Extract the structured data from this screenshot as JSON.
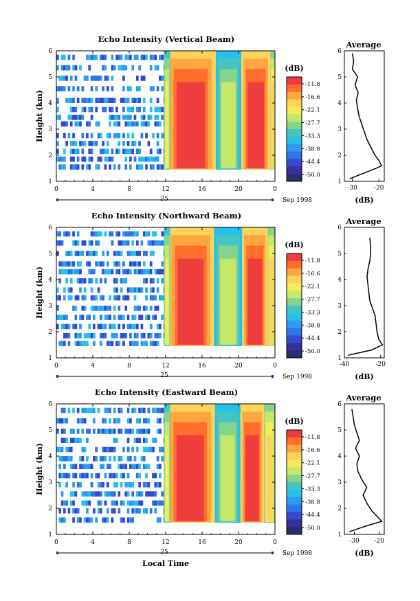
{
  "chart_data": [
    {
      "type": "heatmap",
      "title": "Echo Intensity (Vertical Beam)",
      "ylabel": "Height (km)",
      "yticks": [
        "1",
        "2",
        "3",
        "4",
        "5",
        "6"
      ],
      "ylim": [
        1,
        6
      ],
      "xticks": [
        "0",
        "4",
        "8",
        "12",
        "16",
        "20",
        "0"
      ],
      "xlim": [
        0,
        24
      ],
      "date_day": "25",
      "date_month": "Sep 1998",
      "colorbar": {
        "unit": "(dB)",
        "labels": [
          "-11.8",
          "-16.6",
          "-22.1",
          "-27.7",
          "-33.3",
          "-38.8",
          "-44.4",
          "-50.0"
        ],
        "colors": [
          "#ef3d3d",
          "#ff6d2f",
          "#ffa640",
          "#ffd35a",
          "#f7ec55",
          "#c5e86a",
          "#85d48e",
          "#45c5bf",
          "#26c0ea",
          "#2c9bf0",
          "#2f74e8",
          "#3349d2",
          "#3a2e9c",
          "#2c2c6c"
        ]
      },
      "clutter_rows_km": [
        1.55,
        1.85,
        2.15,
        2.45,
        2.75,
        3.2,
        3.45,
        3.75,
        4.1,
        4.55,
        4.95,
        5.35,
        5.75
      ],
      "echo_columns": [
        {
          "time_start": 12.0,
          "time_end": 17.5,
          "level": 13
        },
        {
          "time_start": 20.3,
          "time_end": 23.5,
          "level": 13
        },
        {
          "time_start": 11.8,
          "time_end": 12.5,
          "level": 9
        },
        {
          "time_start": 17.5,
          "time_end": 20.3,
          "level": 8
        },
        {
          "time_start": 23.5,
          "time_end": 24.0,
          "level": 10
        }
      ],
      "average": {
        "title": "Average",
        "xlabel": "(dB)",
        "xticks": [
          "-30",
          "-20"
        ],
        "xlim": [
          -33,
          -18
        ],
        "height_km": [
          1.1,
          1.3,
          1.5,
          1.6,
          1.8,
          2.0,
          2.3,
          2.6,
          2.9,
          3.2,
          3.5,
          3.8,
          4.1,
          4.4,
          4.7,
          5.0,
          5.3,
          5.6,
          5.9
        ],
        "db": [
          -31,
          -26,
          -21,
          -19,
          -20,
          -21.5,
          -23,
          -24.5,
          -25.5,
          -26.5,
          -27.5,
          -28,
          -28.5,
          -27.8,
          -29,
          -28,
          -30,
          -29.5,
          -30
        ]
      }
    },
    {
      "type": "heatmap",
      "title": "Echo Intensity (Northward Beam)",
      "ylabel": "Height (km)",
      "yticks": [
        "1",
        "2",
        "3",
        "4",
        "5",
        "6"
      ],
      "ylim": [
        1,
        6
      ],
      "xticks": [
        "0",
        "4",
        "8",
        "12",
        "16",
        "20",
        "0"
      ],
      "xlim": [
        0,
        24
      ],
      "date_day": "25",
      "date_month": "Sep 1998",
      "colorbar": {
        "unit": "(dB)",
        "labels": [
          "-11.8",
          "-16.6",
          "-22.1",
          "-27.7",
          "-33.3",
          "-38.8",
          "-44.4",
          "-50.0"
        ],
        "colors": [
          "#ef3d3d",
          "#ff6d2f",
          "#ffa640",
          "#ffd35a",
          "#f7ec55",
          "#c5e86a",
          "#85d48e",
          "#45c5bf",
          "#26c0ea",
          "#2c9bf0",
          "#2f74e8",
          "#3349d2",
          "#3a2e9c",
          "#2c2c6c"
        ]
      },
      "clutter_rows_km": [
        1.55,
        1.85,
        2.2,
        2.55,
        2.9,
        3.3,
        3.6,
        3.95,
        4.3,
        4.6,
        5.0,
        5.4,
        5.75
      ],
      "echo_columns": [
        {
          "time_start": 12.2,
          "time_end": 17.3,
          "level": 13
        },
        {
          "time_start": 20.4,
          "time_end": 23.2,
          "level": 13
        },
        {
          "time_start": 11.8,
          "time_end": 12.5,
          "level": 9
        },
        {
          "time_start": 17.3,
          "time_end": 20.4,
          "level": 8
        },
        {
          "time_start": 23.2,
          "time_end": 24.0,
          "level": 10
        }
      ],
      "average": {
        "title": "Average",
        "xlabel": "(dB)",
        "xticks": [
          "-40",
          "-20"
        ],
        "xlim": [
          -40,
          -18
        ],
        "height_km": [
          1.1,
          1.3,
          1.5,
          1.7,
          2.0,
          2.3,
          2.6,
          2.9,
          3.2,
          3.5,
          3.8,
          4.1,
          4.4,
          4.7,
          5.0,
          5.3,
          5.6
        ],
        "db": [
          -38,
          -25,
          -19,
          -21,
          -22,
          -22.5,
          -23,
          -24.5,
          -26,
          -26.5,
          -27,
          -27.5,
          -27,
          -26,
          -25.5,
          -25.5,
          -26
        ]
      }
    },
    {
      "type": "heatmap",
      "title": "Echo Intensity (Eastward Beam)",
      "ylabel": "Height (km)",
      "yticks": [
        "1",
        "2",
        "3",
        "4",
        "5",
        "6"
      ],
      "ylim": [
        1,
        6
      ],
      "xticks": [
        "0",
        "4",
        "8",
        "12",
        "16",
        "20",
        "0"
      ],
      "xlim": [
        0,
        24
      ],
      "xlabel": "Local Time",
      "date_day": "25",
      "date_month": "Sep 1998",
      "colorbar": {
        "unit": "(dB)",
        "labels": [
          "-11.8",
          "-16.6",
          "-22.1",
          "-27.7",
          "-33.3",
          "-38.8",
          "-44.4",
          "-50.0"
        ],
        "colors": [
          "#ef3d3d",
          "#ff6d2f",
          "#ffa640",
          "#ffd35a",
          "#f7ec55",
          "#c5e86a",
          "#85d48e",
          "#45c5bf",
          "#26c0ea",
          "#2c9bf0",
          "#2f74e8",
          "#3349d2",
          "#3a2e9c",
          "#2c2c6c"
        ]
      },
      "clutter_rows_km": [
        1.55,
        1.9,
        2.2,
        2.55,
        2.9,
        3.25,
        3.6,
        3.9,
        4.25,
        4.6,
        4.95,
        5.35,
        5.75
      ],
      "echo_columns": [
        {
          "time_start": 12.0,
          "time_end": 17.4,
          "level": 13
        },
        {
          "time_start": 20.2,
          "time_end": 22.8,
          "level": 13
        },
        {
          "time_start": 11.8,
          "time_end": 12.5,
          "level": 9
        },
        {
          "time_start": 17.4,
          "time_end": 20.2,
          "level": 8
        },
        {
          "time_start": 22.8,
          "time_end": 24.0,
          "level": 10
        }
      ],
      "average": {
        "title": "Average",
        "xlabel": "(dB)",
        "xticks": [
          "-30",
          "-20"
        ],
        "xlim": [
          -34,
          -18
        ],
        "height_km": [
          1.1,
          1.3,
          1.5,
          1.7,
          1.9,
          2.2,
          2.5,
          2.8,
          3.1,
          3.4,
          3.7,
          4.0,
          4.3,
          4.6,
          4.9,
          5.2,
          5.5,
          5.8
        ],
        "db": [
          -32,
          -26,
          -19,
          -21,
          -23,
          -25,
          -26.5,
          -25,
          -27,
          -28.5,
          -29,
          -28,
          -29.5,
          -28,
          -29,
          -30,
          -30.5,
          -31
        ]
      }
    }
  ]
}
